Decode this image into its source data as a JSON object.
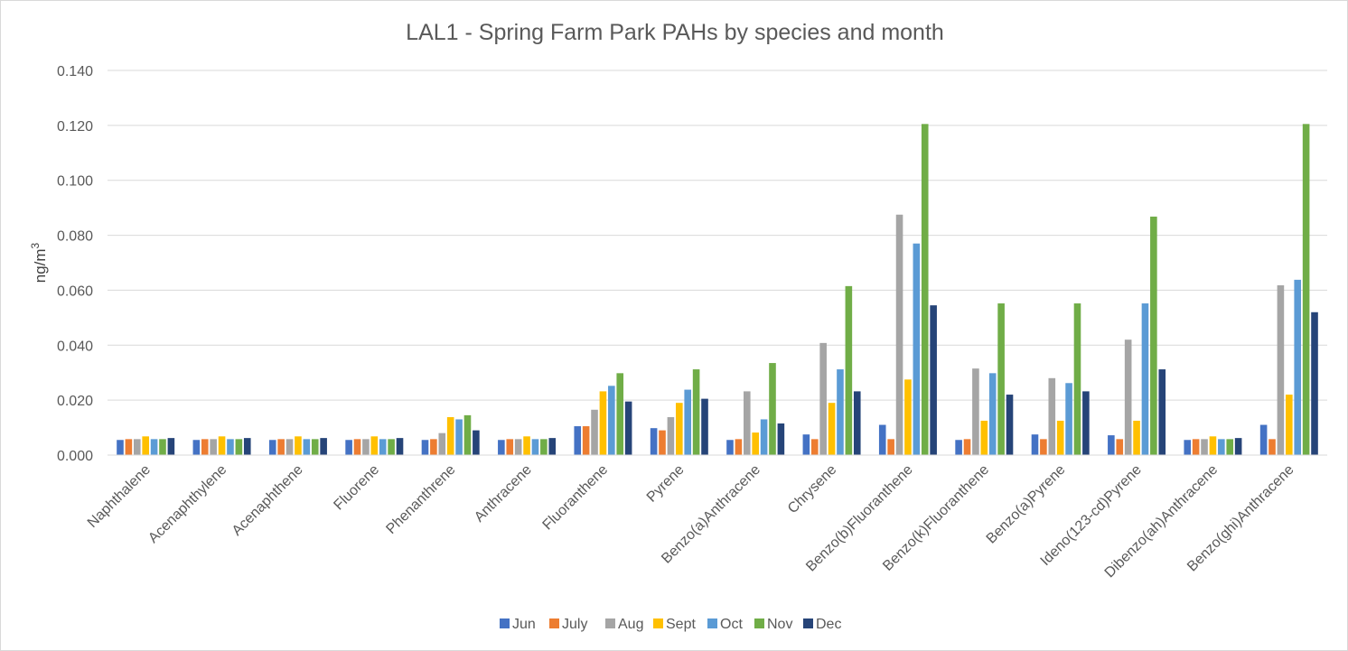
{
  "chart_data": {
    "type": "bar",
    "title": "LAL1 - Spring Farm Park PAHs by species and month",
    "xlabel": "",
    "ylabel": "ng/m",
    "ylabel_superscript": "3",
    "ylim": [
      0,
      0.14
    ],
    "yticks": [
      "0.000",
      "0.020",
      "0.040",
      "0.060",
      "0.080",
      "0.100",
      "0.120",
      "0.140"
    ],
    "ytick_values": [
      0,
      0.02,
      0.04,
      0.06,
      0.08,
      0.1,
      0.12,
      0.14
    ],
    "grid": true,
    "legend_position": "bottom",
    "categories": [
      "Naphthalene",
      "Acenaphthylene",
      "Acenaphthene",
      "Fluorene",
      "Phenanthrene",
      "Anthracene",
      "Fluoranthene",
      "Pyrene",
      "Benzo(a)Anthracene",
      "Chrysene",
      "Benzo(b)Fluoranthene",
      "Benzo(k)Fluoranthene",
      "Benzo(a)Pyrene",
      "Ideno(123-cd)Pyrene",
      "Dibenzo(ah)Anthracene",
      "Benzo(ghi)Anthracene"
    ],
    "series": [
      {
        "name": "Jun",
        "color": "#4472C4",
        "values": [
          0.0055,
          0.0055,
          0.0055,
          0.0055,
          0.0055,
          0.0055,
          0.0105,
          0.0098,
          0.0055,
          0.0075,
          0.011,
          0.0055,
          0.0075,
          0.0072,
          0.0055,
          0.011
        ]
      },
      {
        "name": "July",
        "color": "#ED7D31",
        "values": [
          0.0058,
          0.0058,
          0.0058,
          0.0058,
          0.0058,
          0.0058,
          0.0105,
          0.009,
          0.0058,
          0.0058,
          0.0058,
          0.0058,
          0.0058,
          0.0058,
          0.0058,
          0.0058
        ]
      },
      {
        "name": "Aug",
        "color": "#A5A5A5",
        "values": [
          0.0058,
          0.0058,
          0.0058,
          0.0058,
          0.008,
          0.0058,
          0.0165,
          0.0138,
          0.0232,
          0.0408,
          0.0875,
          0.0315,
          0.028,
          0.042,
          0.0058,
          0.0618
        ]
      },
      {
        "name": "Sept",
        "color": "#FFC000",
        "values": [
          0.0068,
          0.0068,
          0.0068,
          0.0068,
          0.0138,
          0.0068,
          0.0232,
          0.019,
          0.0082,
          0.019,
          0.0275,
          0.0125,
          0.0125,
          0.0125,
          0.0068,
          0.022
        ]
      },
      {
        "name": "Oct",
        "color": "#5B9BD5",
        "values": [
          0.0058,
          0.0058,
          0.0058,
          0.0058,
          0.013,
          0.0058,
          0.0252,
          0.0238,
          0.013,
          0.0312,
          0.077,
          0.0298,
          0.0262,
          0.0552,
          0.0058,
          0.0638
        ]
      },
      {
        "name": "Nov",
        "color": "#70AD47",
        "values": [
          0.0058,
          0.0058,
          0.0058,
          0.0058,
          0.0145,
          0.0058,
          0.0298,
          0.0312,
          0.0335,
          0.0615,
          0.1205,
          0.0552,
          0.0552,
          0.0868,
          0.0058,
          0.1205
        ]
      },
      {
        "name": "Dec",
        "color": "#264478",
        "values": [
          0.0062,
          0.0062,
          0.0062,
          0.0062,
          0.009,
          0.0062,
          0.0195,
          0.0205,
          0.0115,
          0.0232,
          0.0545,
          0.022,
          0.0232,
          0.0312,
          0.0062,
          0.052
        ]
      }
    ],
    "colors": {
      "gridline": "#d9d9d9",
      "text": "#595959",
      "axis_title": "#404040"
    }
  }
}
